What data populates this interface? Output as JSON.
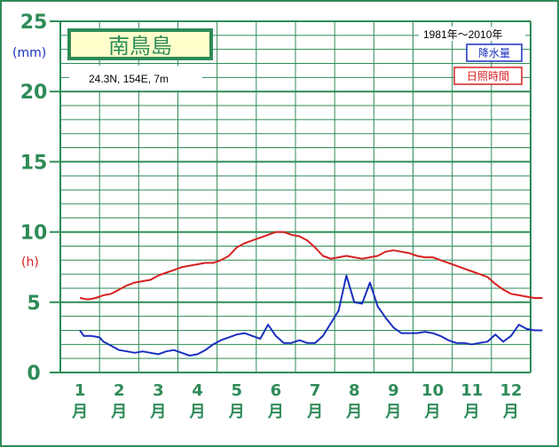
{
  "chart_data": {
    "type": "line",
    "title": "南鳥島",
    "location": "24.3N, 154E,  7m",
    "period": "1981年～2010年",
    "units": {
      "precip": "(mm)",
      "sunshine": "(h)"
    },
    "legend": [
      "降水量",
      "日照時間"
    ],
    "ylim": [
      0,
      25
    ],
    "yticks": [
      "0",
      "5",
      "10",
      "15",
      "20",
      "25"
    ],
    "months": [
      "1",
      "2",
      "3",
      "4",
      "5",
      "6",
      "7",
      "8",
      "9",
      "10",
      "11",
      "12"
    ],
    "month_suffix": "月",
    "colors": {
      "grid": "#2e8b57",
      "precip": "#1a2fbf",
      "sunshine": "#d62020",
      "title_bg": "#ffffcc"
    },
    "series": [
      {
        "name": "降水量",
        "x": [
          1.0,
          1.1,
          1.3,
          1.5,
          1.6,
          1.8,
          2.0,
          2.2,
          2.4,
          2.6,
          2.8,
          3.0,
          3.2,
          3.4,
          3.6,
          3.8,
          4.0,
          4.2,
          4.4,
          4.6,
          4.8,
          5.0,
          5.2,
          5.4,
          5.6,
          5.8,
          6.0,
          6.2,
          6.4,
          6.6,
          6.8,
          7.0,
          7.2,
          7.4,
          7.6,
          7.8,
          8.0,
          8.2,
          8.4,
          8.6,
          8.8,
          9.0,
          9.2,
          9.4,
          9.6,
          9.8,
          10.0,
          10.2,
          10.4,
          10.6,
          10.8,
          11.0,
          11.2,
          11.4,
          11.6,
          11.8,
          12.0,
          12.2,
          12.4,
          12.6,
          12.8
        ],
        "values": [
          3.0,
          2.6,
          2.6,
          2.5,
          2.2,
          1.9,
          1.6,
          1.5,
          1.4,
          1.5,
          1.4,
          1.3,
          1.5,
          1.6,
          1.4,
          1.2,
          1.3,
          1.6,
          2.0,
          2.3,
          2.5,
          2.7,
          2.8,
          2.6,
          2.4,
          3.4,
          2.6,
          2.1,
          2.1,
          2.3,
          2.1,
          2.1,
          2.6,
          3.5,
          4.4,
          6.9,
          5.0,
          4.9,
          6.4,
          4.7,
          3.9,
          3.2,
          2.8,
          2.8,
          2.8,
          2.9,
          2.8,
          2.6,
          2.3,
          2.1,
          2.1,
          2.0,
          2.1,
          2.2,
          2.7,
          2.2,
          2.6,
          3.4,
          3.1,
          3.0,
          3.0
        ]
      },
      {
        "name": "日照時間",
        "x": [
          1.0,
          1.2,
          1.4,
          1.6,
          1.8,
          2.0,
          2.2,
          2.4,
          2.6,
          2.8,
          3.0,
          3.2,
          3.4,
          3.6,
          3.8,
          4.0,
          4.2,
          4.4,
          4.6,
          4.8,
          5.0,
          5.2,
          5.4,
          5.6,
          5.8,
          6.0,
          6.2,
          6.4,
          6.6,
          6.8,
          7.0,
          7.2,
          7.4,
          7.6,
          7.8,
          8.0,
          8.2,
          8.4,
          8.6,
          8.8,
          9.0,
          9.2,
          9.4,
          9.6,
          9.8,
          10.0,
          10.2,
          10.4,
          10.6,
          10.8,
          11.0,
          11.2,
          11.4,
          11.6,
          11.8,
          12.0,
          12.2,
          12.4,
          12.6,
          12.8
        ],
        "values": [
          5.3,
          5.2,
          5.3,
          5.5,
          5.6,
          5.9,
          6.2,
          6.4,
          6.5,
          6.6,
          6.9,
          7.1,
          7.3,
          7.5,
          7.6,
          7.7,
          7.8,
          7.8,
          8.0,
          8.3,
          8.9,
          9.2,
          9.4,
          9.6,
          9.8,
          10.0,
          10.0,
          9.8,
          9.7,
          9.4,
          8.9,
          8.3,
          8.1,
          8.2,
          8.3,
          8.2,
          8.1,
          8.2,
          8.3,
          8.6,
          8.7,
          8.6,
          8.5,
          8.3,
          8.2,
          8.2,
          8.0,
          7.8,
          7.6,
          7.4,
          7.2,
          7.0,
          6.8,
          6.3,
          5.9,
          5.6,
          5.5,
          5.4,
          5.3,
          5.3
        ]
      }
    ]
  }
}
